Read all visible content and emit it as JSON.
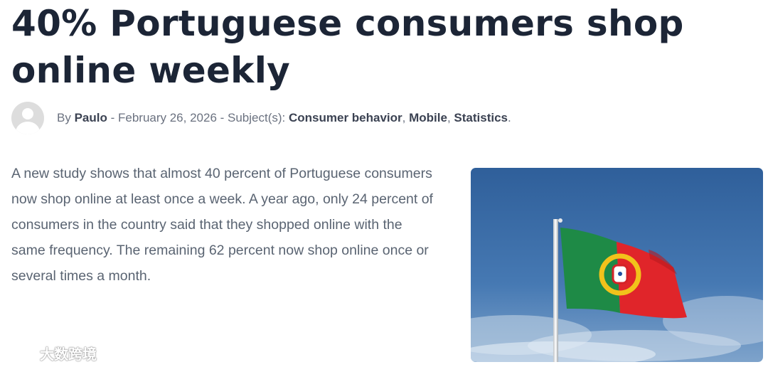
{
  "article": {
    "title": "40% Portuguese consumers shop online weekly",
    "meta": {
      "by_label": "By",
      "author": "Paulo",
      "separator": " - ",
      "date": "February 26, 2026",
      "subjects_label": "Subject(s):",
      "subjects": [
        "Consumer behavior",
        "Mobile",
        "Statistics"
      ],
      "end": "."
    },
    "body": "A new study shows that almost 40 percent of Portuguese consumers now shop online at least once a week. A year ago, only 24 percent of consumers in the country said that they shopped online with the same frequency. The remaining 62 percent now shop online once or several times a month."
  },
  "watermark": {
    "text": "大数跨境",
    "icon": "cloud-logo-icon"
  },
  "colors": {
    "title": "#1c2536",
    "meta": "#6b7280",
    "body": "#5a6472",
    "sky": "#3f6fa6",
    "flag_green": "#1e8a46",
    "flag_red": "#e0252a"
  }
}
